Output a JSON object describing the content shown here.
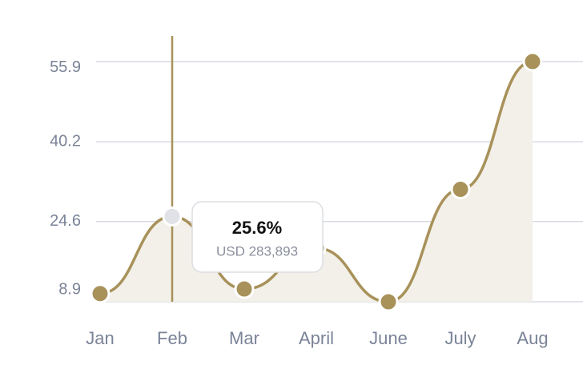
{
  "chart_data": {
    "type": "line",
    "categories": [
      "Jan",
      "Feb",
      "Mar",
      "April",
      "June",
      "July",
      "Aug"
    ],
    "values": [
      10.5,
      25.6,
      11.4,
      19.4,
      8.9,
      30.9,
      55.9
    ],
    "color": "#a8925a",
    "area_color": "#f3f0e9",
    "ylim": [
      8.9,
      60.9
    ],
    "yticks": [
      8.9,
      24.6,
      40.2,
      55.9
    ],
    "grid": true,
    "tooltip": {
      "index": 1,
      "title": "25.6%",
      "subtitle": "USD 283,893"
    }
  }
}
